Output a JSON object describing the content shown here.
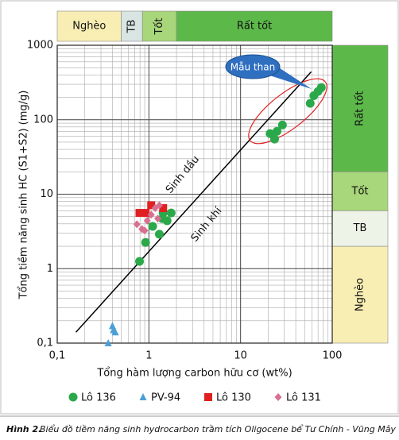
{
  "chart_data": {
    "type": "scatter",
    "xlabel": "Tổng hàm lượng carbon hữu cơ (wt%)",
    "ylabel": "Tổng tiềm năng sinh HC (S1+S2) (mg/g)",
    "log_x": true,
    "log_y": true,
    "grid": true,
    "xlim": [
      0.1,
      100
    ],
    "ylim": [
      0.1,
      1000
    ],
    "xticks": [
      {
        "value": 0.1,
        "label": "0,1"
      },
      1,
      10,
      100
    ],
    "yticks": [
      {
        "value": 0.1,
        "label": "0,1"
      },
      1,
      10,
      100,
      1000
    ],
    "zones_x": [
      {
        "label": "Nghèo",
        "range": [
          0.1,
          0.5
        ],
        "color": "#f8eeb4"
      },
      {
        "label": "TB",
        "range": [
          0.5,
          0.85
        ],
        "color": "#d9e5e3"
      },
      {
        "label": "Tốt",
        "range": [
          0.85,
          2
        ],
        "color": "#a8d67a"
      },
      {
        "label": "Rất tốt",
        "range": [
          2,
          100
        ],
        "color": "#5db84a"
      }
    ],
    "zones_y": [
      {
        "label": "Nghèo",
        "range": [
          0.1,
          2
        ],
        "color": "#f8eeb4"
      },
      {
        "label": "TB",
        "range": [
          2,
          6
        ],
        "color": "#eef3e8"
      },
      {
        "label": "Tốt",
        "range": [
          6,
          20
        ],
        "color": "#a8d67a"
      },
      {
        "label": "Rất tốt",
        "range": [
          20,
          1000
        ],
        "color": "#5db84a"
      }
    ],
    "reference_line": {
      "x": [
        0.16,
        59
      ],
      "y": [
        0.14,
        440
      ]
    },
    "annotations": [
      "Sinh dầu",
      "Sinh khí",
      "Mẫu than"
    ],
    "series": [
      {
        "name": "Lô 136",
        "color": "#2ba84a",
        "marker": "circle",
        "x": [
          0.79,
          0.92,
          1.3,
          1.1,
          1.43,
          1.75,
          1.58,
          1.4,
          21,
          25,
          23.5,
          28.6,
          57.5,
          63,
          70,
          76
        ],
        "values": [
          1.25,
          2.25,
          2.9,
          3.7,
          5.6,
          5.6,
          4.4,
          4.7,
          65,
          70,
          55,
          85,
          166,
          210,
          240,
          270
        ]
      },
      {
        "name": "PV-94",
        "color": "#4a9fd8",
        "marker": "triangle",
        "x": [
          0.36,
          0.4,
          0.41,
          0.43
        ],
        "values": [
          0.1,
          0.17,
          0.15,
          0.14
        ]
      },
      {
        "name": "Lô 130",
        "color": "#e02020",
        "marker": "square",
        "x": [
          0.79,
          1.06,
          1.43,
          0.92
        ],
        "values": [
          5.6,
          7.1,
          6.5,
          5.6
        ]
      },
      {
        "name": "Lô 131",
        "color": "#d87090",
        "marker": "diamond",
        "x": [
          0.74,
          0.84,
          0.96,
          1.06,
          1.17,
          1.25,
          0.9,
          1.3
        ],
        "values": [
          3.95,
          3.4,
          4.4,
          5.3,
          6.5,
          4.7,
          3.25,
          7.1
        ]
      }
    ]
  },
  "caption": {
    "label": "Hình 2.",
    "text": "Biểu đồ tiềm năng sinh hydrocarbon trầm tích Oligocene bể Tư Chính - Vũng Mây"
  }
}
